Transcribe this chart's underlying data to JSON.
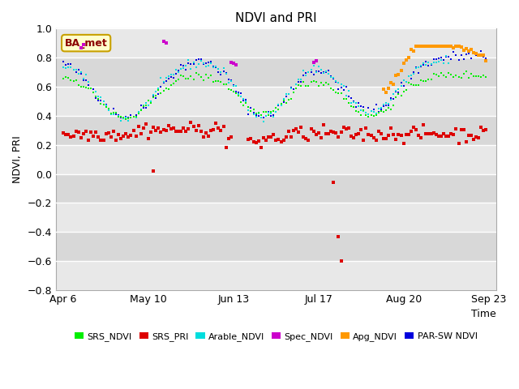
{
  "title": "NDVI and PRI",
  "xlabel": "Time",
  "ylabel": "NDVI, PRI",
  "ylim": [
    -0.8,
    1.0
  ],
  "yticks": [
    -0.8,
    -0.6,
    -0.4,
    -0.2,
    0.0,
    0.2,
    0.4,
    0.6,
    0.8,
    1.0
  ],
  "x_tick_labels": [
    "Apr 6",
    "May 10",
    "Jun 13",
    "Jul 17",
    "Aug 20",
    "Sep 23"
  ],
  "x_tick_positions": [
    0,
    34,
    68,
    102,
    136,
    170
  ],
  "annotation_label": "BA_met",
  "annotation_color": "#c8a000",
  "background_color": "#d8d8d8",
  "band_color_light": "#e8e8e8",
  "band_color_dark": "#d0d0d0",
  "legend_labels": [
    "SRS_NDVI",
    "SRS_PRI",
    "Arable_NDVI",
    "Spec_NDVI",
    "Apg_NDVI",
    "PAR-SW NDVI"
  ],
  "legend_colors": [
    "#00ee00",
    "#dd0000",
    "#00dddd",
    "#cc00cc",
    "#ff9900",
    "#0000dd"
  ]
}
